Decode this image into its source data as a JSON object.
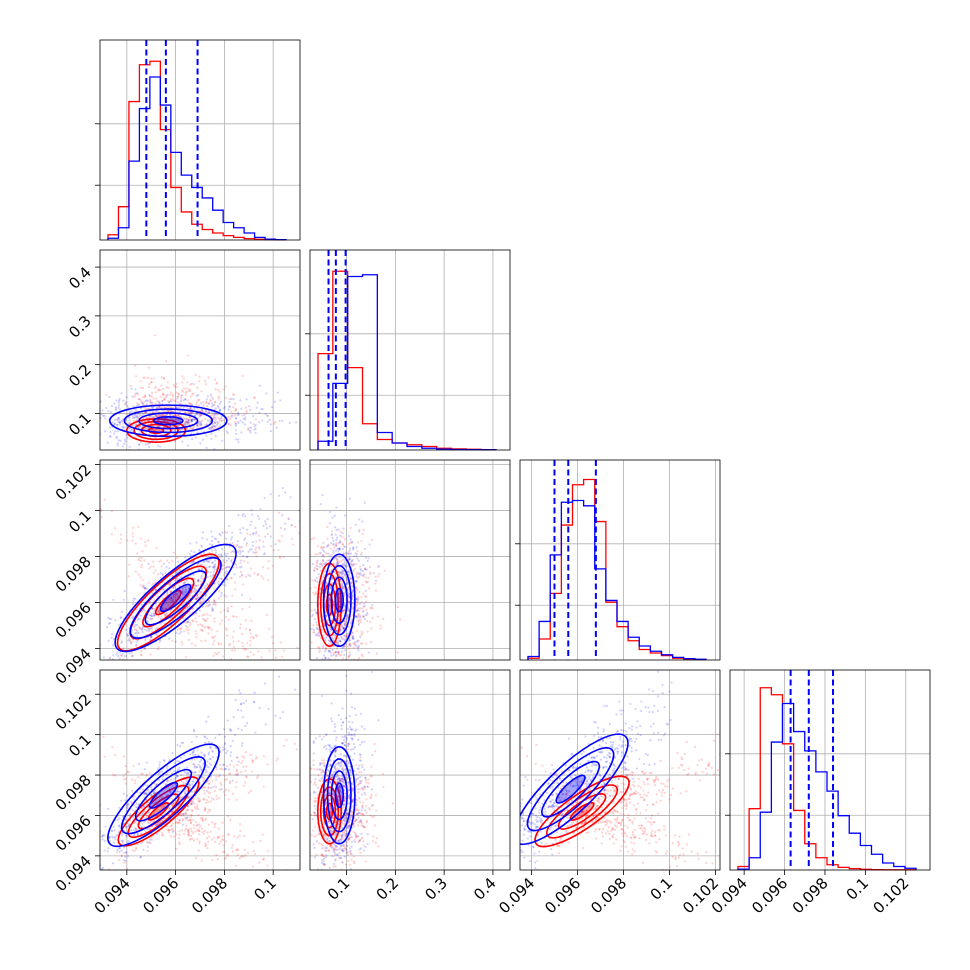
{
  "chart_data": {
    "type": "corner",
    "colors": {
      "model_a": "#0000ff",
      "model_b": "#ff0000",
      "grid": "#b0b0b0"
    },
    "parameters": [
      {
        "ticks": [
          0.094,
          0.096,
          0.098,
          0.1
        ],
        "range": [
          0.0929,
          0.1011
        ]
      },
      {
        "ticks": [
          0.1,
          0.2,
          0.3,
          0.4
        ],
        "range": [
          0.025,
          0.435
        ]
      },
      {
        "ticks": [
          0.094,
          0.096,
          0.098,
          0.1,
          0.102
        ],
        "range": [
          0.0935,
          0.1022
        ]
      },
      {
        "ticks": [
          0.094,
          0.096,
          0.098,
          0.1,
          0.102
        ],
        "range": [
          0.0933,
          0.1032
        ]
      }
    ],
    "histograms": [
      {
        "quantiles": [
          0.0948,
          0.0956,
          0.0969
        ],
        "blue": [
          0.01,
          0.07,
          0.45,
          0.75,
          0.93,
          0.77,
          0.5,
          0.37,
          0.3,
          0.24,
          0.17,
          0.1,
          0.07,
          0.04,
          0.015,
          0.005,
          0.002
        ],
        "red": [
          0.03,
          0.19,
          0.79,
          1.0,
          1.02,
          0.63,
          0.3,
          0.16,
          0.09,
          0.06,
          0.04,
          0.025,
          0.015,
          0.008,
          0.004,
          0.002,
          0.001
        ]
      },
      {
        "quantiles": [
          0.063,
          0.078,
          0.098
        ],
        "blue": [
          0.05,
          0.38,
          0.99,
          1.0,
          0.1,
          0.04,
          0.02,
          0.01,
          0.005,
          0.003,
          0.002,
          0.001
        ],
        "red": [
          0.55,
          1.02,
          0.47,
          0.15,
          0.06,
          0.04,
          0.03,
          0.02,
          0.01,
          0.006,
          0.004,
          0.002
        ]
      },
      {
        "quantiles": [
          0.095,
          0.0956,
          0.0968
        ],
        "blue": [
          0.02,
          0.22,
          0.6,
          0.9,
          0.91,
          0.88,
          0.52,
          0.34,
          0.22,
          0.13,
          0.08,
          0.05,
          0.03,
          0.015,
          0.008,
          0.004
        ],
        "red": [
          0.01,
          0.12,
          0.38,
          0.77,
          1.0,
          1.03,
          0.79,
          0.33,
          0.19,
          0.11,
          0.06,
          0.04,
          0.025,
          0.01,
          0.005,
          0.003
        ]
      },
      {
        "quantiles": [
          0.0963,
          0.0972,
          0.0984
        ],
        "blue": [
          0.005,
          0.07,
          0.33,
          0.73,
          0.95,
          0.79,
          0.68,
          0.56,
          0.45,
          0.31,
          0.21,
          0.14,
          0.09,
          0.04,
          0.02,
          0.01
        ],
        "red": [
          0.02,
          0.35,
          1.04,
          1.0,
          0.72,
          0.34,
          0.15,
          0.07,
          0.03,
          0.015,
          0.008,
          0.004,
          0.002,
          0.001,
          0.001,
          0.001
        ]
      }
    ],
    "pairs": [
      {
        "row": 1,
        "col": 0,
        "blue": {
          "center": [
            0.0957,
            0.085
          ],
          "spread": [
            0.0012,
            0.016
          ]
        },
        "red": {
          "center": [
            0.0952,
            0.065
          ],
          "spread": [
            0.0006,
            0.012
          ]
        }
      },
      {
        "row": 2,
        "col": 0,
        "blue": {
          "center": [
            0.096,
            0.0962
          ],
          "spread": [
            0.0012,
            0.0011
          ]
        },
        "red": {
          "center": [
            0.0957,
            0.096
          ],
          "spread": [
            0.001,
            0.001
          ]
        }
      },
      {
        "row": 2,
        "col": 1,
        "blue": {
          "center": [
            0.085,
            0.0961
          ],
          "spread": [
            0.016,
            0.001
          ]
        },
        "red": {
          "center": [
            0.065,
            0.0959
          ],
          "spread": [
            0.012,
            0.0009
          ]
        }
      },
      {
        "row": 3,
        "col": 0,
        "blue": {
          "center": [
            0.0955,
            0.097
          ],
          "spread": [
            0.0011,
            0.0012
          ]
        },
        "red": {
          "center": [
            0.0953,
            0.0962
          ],
          "spread": [
            0.0008,
            0.0008
          ]
        }
      },
      {
        "row": 3,
        "col": 1,
        "blue": {
          "center": [
            0.085,
            0.097
          ],
          "spread": [
            0.016,
            0.0012
          ]
        },
        "red": {
          "center": [
            0.065,
            0.0962
          ],
          "spread": [
            0.012,
            0.0008
          ]
        }
      },
      {
        "row": 3,
        "col": 2,
        "blue": {
          "center": [
            0.0957,
            0.0973
          ],
          "spread": [
            0.0012,
            0.0013
          ]
        },
        "red": {
          "center": [
            0.0962,
            0.0962
          ],
          "spread": [
            0.001,
            0.0008
          ]
        }
      }
    ]
  }
}
